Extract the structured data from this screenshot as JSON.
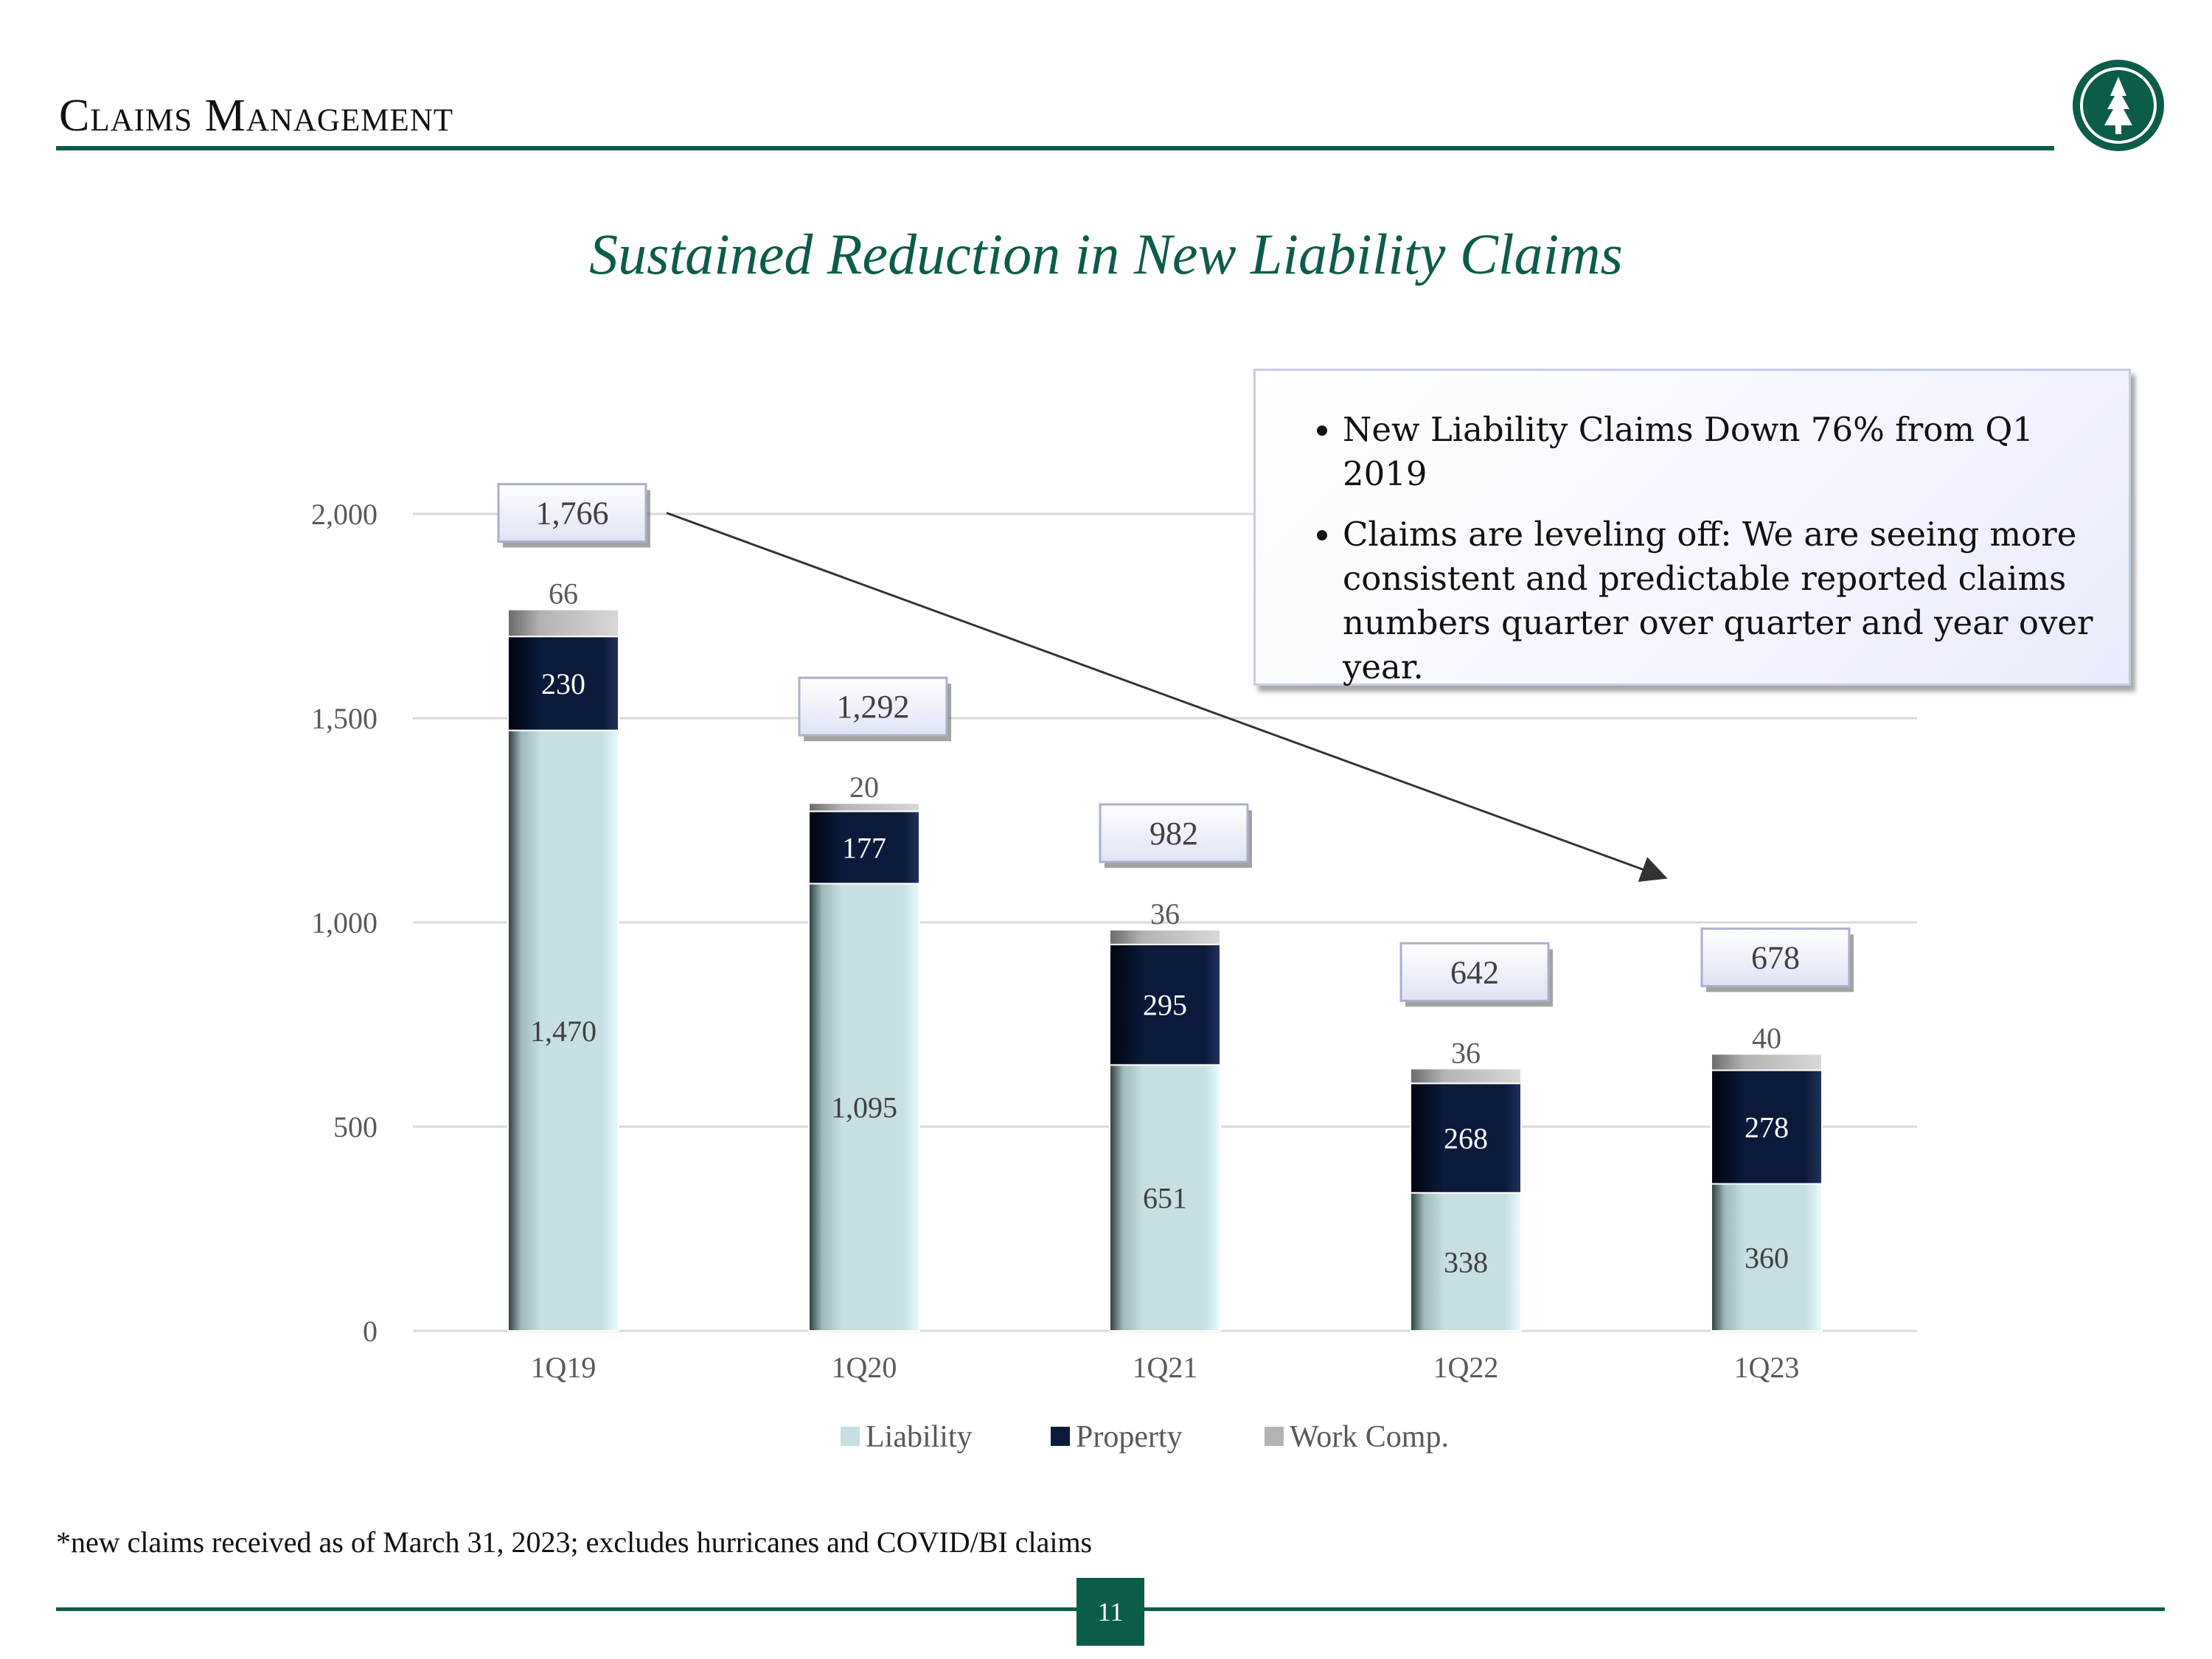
{
  "header": {
    "title": "Claims Management"
  },
  "slide_title": "Sustained Reduction in New Liability Claims",
  "callout": {
    "bullets": [
      "New Liability Claims Down 76% from Q1 2019",
      "Claims are leveling off: We are seeing more consistent and predictable reported claims numbers quarter over quarter and year over year."
    ]
  },
  "footnote": "*new claims received as of March 31, 2023; excludes hurricanes and COVID/BI claims",
  "page_number": "11",
  "colors": {
    "brand_green": "#0c5c4a",
    "liability": "#c6dfe2",
    "property": "#0b1a3b",
    "work_comp": "#b3b3b3"
  },
  "chart_data": {
    "type": "bar",
    "stacked": true,
    "categories": [
      "1Q19",
      "1Q20",
      "1Q21",
      "1Q22",
      "1Q23"
    ],
    "series": [
      {
        "name": "Liability",
        "values": [
          1470,
          1095,
          651,
          338,
          360
        ],
        "labels": [
          "1,470",
          "1,095",
          "651",
          "338",
          "360"
        ]
      },
      {
        "name": "Property",
        "values": [
          230,
          177,
          295,
          268,
          278
        ],
        "labels": [
          "230",
          "177",
          "295",
          "268",
          "278"
        ]
      },
      {
        "name": "Work Comp.",
        "values": [
          66,
          20,
          36,
          36,
          40
        ],
        "labels": [
          "66",
          "20",
          "36",
          "36",
          "40"
        ]
      }
    ],
    "totals": [
      1766,
      1292,
      982,
      642,
      678
    ],
    "total_labels": [
      "1,766",
      "1,292",
      "982",
      "642",
      "678"
    ],
    "ylim": [
      0,
      2000
    ],
    "y_ticks": [
      0,
      500,
      1000,
      1500,
      2000
    ],
    "y_tick_labels": [
      "0",
      "500",
      "1,000",
      "1,500",
      "2,000"
    ],
    "grid": true,
    "legend_position": "bottom",
    "trend_arrow": {
      "from": "1Q19",
      "to": "1Q23"
    }
  }
}
